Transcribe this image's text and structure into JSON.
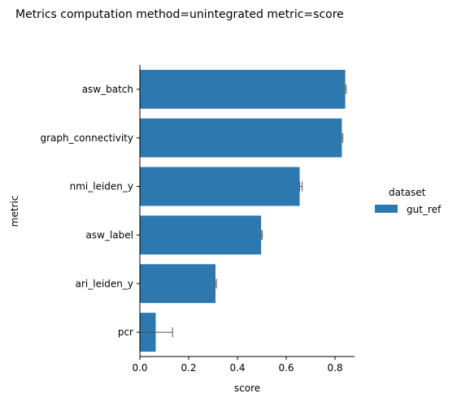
{
  "chart_data": {
    "type": "bar",
    "orientation": "horizontal",
    "title": "Metrics computation method=unintegrated metric=score",
    "xlabel": "score",
    "ylabel": "metric",
    "xlim": [
      0,
      0.88
    ],
    "xticks": [
      "0.0",
      "0.2",
      "0.4",
      "0.6",
      "0.8"
    ],
    "categories": [
      "asw_batch",
      "graph_connectivity",
      "nmi_leiden_y",
      "asw_label",
      "ari_leiden_y",
      "pcr"
    ],
    "series": [
      {
        "name": "gut_ref",
        "color": "#2e78b0",
        "values": [
          0.842,
          0.828,
          0.655,
          0.497,
          0.31,
          0.065
        ],
        "error_low": [
          0.84,
          0.826,
          0.655,
          0.497,
          0.308,
          0.0
        ],
        "error_high": [
          0.846,
          0.832,
          0.665,
          0.502,
          0.314,
          0.134
        ]
      }
    ],
    "grid": false,
    "legend": {
      "title": "dataset",
      "placement": "right"
    }
  }
}
